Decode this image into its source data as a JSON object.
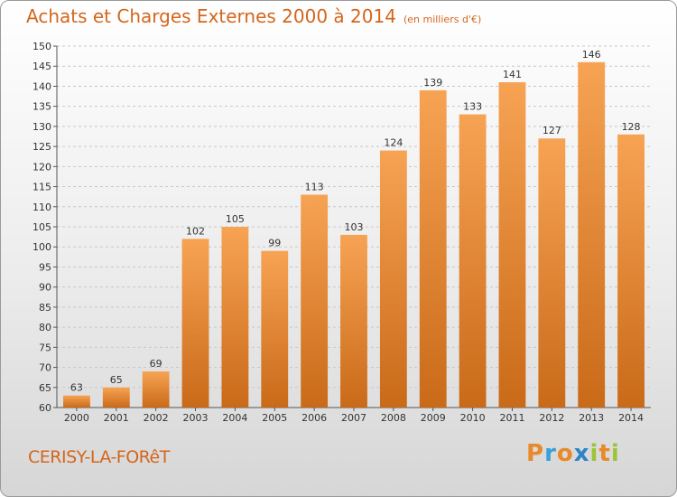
{
  "header": {
    "title": "Achats et Charges Externes 2000 à 2014",
    "subtitle": "(en milliers d'€)"
  },
  "footer": {
    "place": "CERISY-LA-FORêT",
    "brand": {
      "letters": [
        "P",
        "r",
        "o",
        "x",
        "i",
        "t",
        "i"
      ],
      "colors": [
        "#e8892a",
        "#3aa0d8",
        "#e8892a",
        "#2c84c6",
        "#9bc43b",
        "#e8892a",
        "#9bc43b"
      ]
    }
  },
  "colors": {
    "bar_light": "#f7a354",
    "bar_dark": "#c96a18",
    "title": "#d4661c",
    "grid": "#c8c8c8"
  },
  "chart_data": {
    "type": "bar",
    "title": "Achats et Charges Externes 2000 à 2014",
    "subtitle": "(en milliers d'€)",
    "categories": [
      "2000",
      "2001",
      "2002",
      "2003",
      "2004",
      "2005",
      "2006",
      "2007",
      "2008",
      "2009",
      "2010",
      "2011",
      "2012",
      "2013",
      "2014"
    ],
    "values": [
      63,
      65,
      69,
      102,
      105,
      99,
      113,
      103,
      124,
      139,
      133,
      141,
      127,
      146,
      128
    ],
    "xlabel": "",
    "ylabel": "",
    "ylim": [
      60,
      150
    ],
    "yticks": [
      60,
      65,
      70,
      75,
      80,
      85,
      90,
      95,
      100,
      105,
      110,
      115,
      120,
      125,
      130,
      135,
      140,
      145,
      150
    ],
    "grid": true,
    "data_labels": true
  }
}
